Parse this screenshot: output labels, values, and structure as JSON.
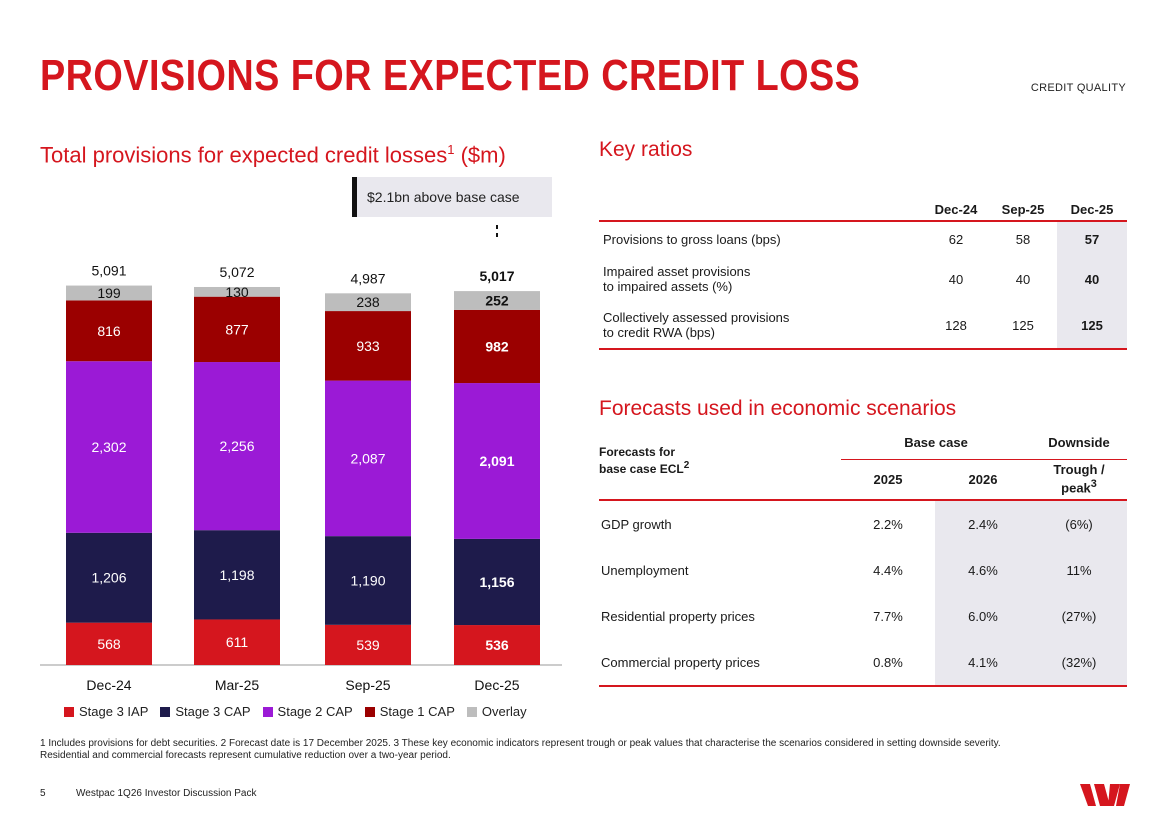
{
  "header": {
    "title": "PROVISIONS FOR EXPECTED CREDIT LOSS",
    "section": "CREDIT QUALITY"
  },
  "chart_data": {
    "type": "bar",
    "stacked": true,
    "title": "Total provisions for expected credit losses",
    "title_sup": "1",
    "title_unit": "($m)",
    "callout": "$2.1bn above base case",
    "categories": [
      "Dec-24",
      "Mar-25",
      "Sep-25",
      "Dec-25"
    ],
    "totals": [
      "5,091",
      "5,072",
      "4,987",
      "5,017"
    ],
    "series": [
      {
        "name": "Stage 3 IAP",
        "color": "#d5161e",
        "values": [
          568,
          611,
          539,
          536
        ],
        "labels": [
          "568",
          "611",
          "539",
          "536"
        ]
      },
      {
        "name": "Stage 3 CAP",
        "color": "#1e1b4b",
        "values": [
          1206,
          1198,
          1190,
          1156
        ],
        "labels": [
          "1,206",
          "1,198",
          "1,190",
          "1,156"
        ]
      },
      {
        "name": "Stage 2 CAP",
        "color": "#9b1ad6",
        "values": [
          2302,
          2256,
          2087,
          2091
        ],
        "labels": [
          "2,302",
          "2,256",
          "2,087",
          "2,091"
        ]
      },
      {
        "name": "Stage 1 CAP",
        "color": "#9b0000",
        "values": [
          816,
          877,
          933,
          982
        ],
        "labels": [
          "816",
          "877",
          "933",
          "982"
        ]
      },
      {
        "name": "Overlay",
        "color": "#bdbdbd",
        "values": [
          199,
          130,
          238,
          252
        ],
        "labels": [
          "199",
          "130",
          "238",
          "252"
        ]
      }
    ],
    "highlight_category": "Dec-25",
    "ylim": [
      0,
      5300
    ],
    "xlabel": "",
    "ylabel": ""
  },
  "key_ratios": {
    "title": "Key ratios",
    "columns": [
      "Dec-24",
      "Sep-25",
      "Dec-25"
    ],
    "rows": [
      {
        "label_line1": "Provisions to gross loans (bps)",
        "label_line2": "",
        "values": [
          "62",
          "58",
          "57"
        ]
      },
      {
        "label_line1": "Impaired asset provisions",
        "label_line2": "to impaired assets (%)",
        "values": [
          "40",
          "40",
          "40"
        ]
      },
      {
        "label_line1": "Collectively assessed provisions",
        "label_line2": "to credit RWA (bps)",
        "values": [
          "128",
          "125",
          "125"
        ]
      }
    ]
  },
  "forecasts": {
    "title": "Forecasts used in economic scenarios",
    "label_line1": "Forecasts for",
    "label_line2": "base case ECL",
    "label_sup": "2",
    "group_base": "Base case",
    "group_down": "Downside",
    "col_2025": "2025",
    "col_2026": "2026",
    "col_trough_line1": "Trough /",
    "col_trough_line2": "peak",
    "col_trough_sup": "3",
    "rows": [
      {
        "label": "GDP growth",
        "values": [
          "2.2%",
          "2.4%",
          "(6%)"
        ]
      },
      {
        "label": "Unemployment",
        "values": [
          "4.4%",
          "4.6%",
          "11%"
        ]
      },
      {
        "label": "Residential property prices",
        "values": [
          "7.7%",
          "6.0%",
          "(27%)"
        ]
      },
      {
        "label": "Commercial property prices",
        "values": [
          "0.8%",
          "4.1%",
          "(32%)"
        ]
      }
    ]
  },
  "footnote": {
    "line1": "1 Includes provisions for debt securities. 2 Forecast date is 17 December 2025. 3 These key economic indicators represent trough or peak values that characterise the scenarios considered in setting downside severity.",
    "line2": "Residential and commercial forecasts represent cumulative reduction over a two-year period."
  },
  "footer": {
    "page": "5",
    "doc": "Westpac 1Q26 Investor Discussion Pack"
  },
  "logo": {
    "icon": "westpac-logo",
    "color": "#d5161e"
  }
}
